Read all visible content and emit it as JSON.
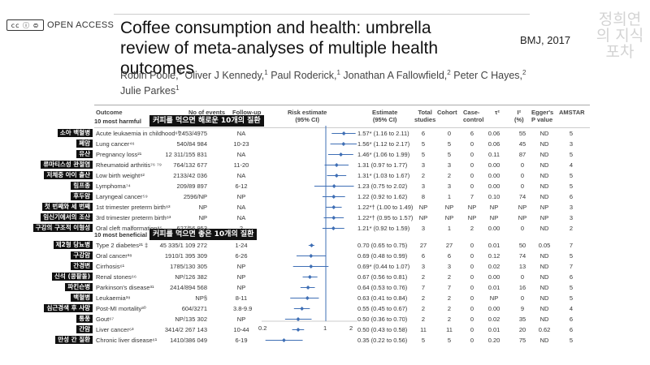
{
  "header": {
    "license_badge": "cc ⓘ ⊜",
    "open_access": "OPEN ACCESS",
    "title": "Coffee consumption and health: umbrella review of meta-analyses of multiple health outcomes",
    "journal": "BMJ, 2017",
    "watermark": "정희연의 지식포차"
  },
  "authors": [
    {
      "name": "Robin Poole,",
      "sup": "1"
    },
    {
      "name": "Oliver J Kennedy,",
      "sup": "1"
    },
    {
      "name": "Paul Roderick,",
      "sup": "1"
    },
    {
      "name": "Jonathan A Fallowfield,",
      "sup": "2"
    },
    {
      "name": "Peter C Hayes,",
      "sup": "2"
    },
    {
      "name": "Julie Parkes",
      "sup": "1"
    }
  ],
  "columns": {
    "outcome": "Outcome",
    "events": "No of events",
    "followup": "Follow-up",
    "risk": "Risk estimate\n(95% CI)",
    "estimate": "Estimate\n(95% CI)",
    "studies": "Total\nstudies",
    "cohort": "Cohort",
    "case_control": "Case-\ncontrol",
    "tau": "τ²",
    "i2": "I²\n(%)",
    "egger": "Egger's\nP value",
    "amstar": "AMSTAR"
  },
  "sections": [
    {
      "title": "10 most harmful",
      "label_kr": "커피를 먹으면 해로운 10개의 질환",
      "rows": [
        {
          "kr": "소아 백혈병",
          "outcome": "Acute leukaemia in childhood⁶⁰",
          "events": "2453/4975",
          "followup": "NA",
          "estimate": "1.57* (1.16 to 2.11)",
          "studies": "6",
          "cohort": "0",
          "cc": "6",
          "tau": "0.06",
          "i2": "55",
          "egger": "ND",
          "amstar": "5"
        },
        {
          "kr": "폐암",
          "outcome": "Lung cancer⁴⁶",
          "events": "540/84 984",
          "followup": "10-23",
          "estimate": "1.56* (1.12 to 2.17)",
          "studies": "5",
          "cohort": "5",
          "cc": "0",
          "tau": "0.06",
          "i2": "45",
          "egger": "ND",
          "amstar": "3"
        },
        {
          "kr": "유산",
          "outcome": "Pregnancy loss²¹",
          "events": "12 311/155 831",
          "followup": "NA",
          "estimate": "1.46* (1.06 to 1.99)",
          "studies": "5",
          "cohort": "5",
          "cc": "0",
          "tau": "0.11",
          "i2": "87",
          "egger": "ND",
          "amstar": "5"
        },
        {
          "kr": "류마티스성 관절염",
          "outcome": "Rheumatoid arthritis⁷⁶ ⁷⁹",
          "events": "764/132 677",
          "followup": "11-20",
          "estimate": "1.31 (0.97 to 1.77)",
          "studies": "3",
          "cohort": "3",
          "cc": "0",
          "tau": "0.00",
          "i2": "0",
          "egger": "ND",
          "amstar": "4"
        },
        {
          "kr": "저체중 아이 출산",
          "outcome": "Low birth weight⁸²",
          "events": "2133/42 036",
          "followup": "NA",
          "estimate": "1.31* (1.03 to 1.67)",
          "studies": "2",
          "cohort": "2",
          "cc": "0",
          "tau": "0.00",
          "i2": "0",
          "egger": "ND",
          "amstar": "5"
        },
        {
          "kr": "림프종",
          "outcome": "Lymphoma⁷⁴",
          "events": "209/89 897",
          "followup": "6-12",
          "estimate": "1.23 (0.75 to 2.02)",
          "studies": "3",
          "cohort": "3",
          "cc": "0",
          "tau": "0.00",
          "i2": "0",
          "egger": "ND",
          "amstar": "5"
        },
        {
          "kr": "후두암",
          "outcome": "Laryngeal cancer⁵⁹",
          "events": "2596/NP",
          "followup": "NP",
          "estimate": "1.22 (0.92 to 1.62)",
          "studies": "8",
          "cohort": "1",
          "cc": "7",
          "tau": "0.10",
          "i2": "74",
          "egger": "ND",
          "amstar": "6"
        },
        {
          "kr": "첫 번째와 세 번째",
          "outcome": "1st trimester preterm birth⁸³",
          "events": "NP",
          "followup": "NA",
          "estimate": "1.22*† (1.00 to 1.49)",
          "studies": "NP",
          "cohort": "NP",
          "cc": "NP",
          "tau": "NP",
          "i2": "NP",
          "egger": "NP",
          "amstar": "3"
        },
        {
          "kr": "임신기에서의 조산",
          "outcome": "3rd trimester preterm birth⁸³",
          "events": "NP",
          "followup": "NA",
          "estimate": "1.22*† (0.95 to 1.57)",
          "studies": "NP",
          "cohort": "NP",
          "cc": "NP",
          "tau": "NP",
          "i2": "NP",
          "egger": "NP",
          "amstar": "3"
        },
        {
          "kr": "구강의 구조적 이형성",
          "outcome": "Oral cleft malformation⁸⁵",
          "events": "627/56 953",
          "followup": "2",
          "estimate": "1.21* (0.92 to 1.59)",
          "studies": "3",
          "cohort": "1",
          "cc": "2",
          "tau": "0.00",
          "i2": "0",
          "egger": "ND",
          "amstar": "2"
        }
      ]
    },
    {
      "title": "10 most beneficial",
      "label_kr": "커피를 먹으면 좋은 10개의 질환",
      "rows": [
        {
          "kr": "제2형 당뇨병",
          "outcome": "Type 2 diabetes²¹ ‡",
          "events": "45 335/1 109 272",
          "followup": "1-24",
          "estimate": "0.70 (0.65 to 0.75)",
          "studies": "27",
          "cohort": "27",
          "cc": "0",
          "tau": "0.01",
          "i2": "50",
          "egger": "0.05",
          "amstar": "7"
        },
        {
          "kr": "구강암",
          "outcome": "Oral cancer³⁸",
          "events": "1910/1 395 309",
          "followup": "6-26",
          "estimate": "0.69 (0.48 to 0.99)",
          "studies": "6",
          "cohort": "6",
          "cc": "0",
          "tau": "0.12",
          "i2": "74",
          "egger": "ND",
          "amstar": "5"
        },
        {
          "kr": "간경변",
          "outcome": "Cirrhosis⁶¹",
          "events": "1785/130 305",
          "followup": "NP",
          "estimate": "0.69* (0.44 to 1.07)",
          "studies": "3",
          "cohort": "3",
          "cc": "0",
          "tau": "0.02",
          "i2": "13",
          "egger": "ND",
          "amstar": "7"
        },
        {
          "kr": "신석 (콩팥돌)",
          "outcome": "Renal stones⁶⁶",
          "events": "NP/126 382",
          "followup": "NP",
          "estimate": "0.67 (0.56 to 0.81)",
          "studies": "2",
          "cohort": "2",
          "cc": "0",
          "tau": "0.00",
          "i2": "0",
          "egger": "ND",
          "amstar": "6"
        },
        {
          "kr": "파킨슨병",
          "outcome": "Parkinson's disease³¹",
          "events": "2414/894 568",
          "followup": "NP",
          "estimate": "0.64 (0.53 to 0.76)",
          "studies": "7",
          "cohort": "7",
          "cc": "0",
          "tau": "0.01",
          "i2": "16",
          "egger": "ND",
          "amstar": "5"
        },
        {
          "kr": "백혈병",
          "outcome": "Leukaemia³⁸",
          "events": "NP§",
          "followup": "8-11",
          "estimate": "0.63 (0.41 to 0.84)",
          "studies": "2",
          "cohort": "2",
          "cc": "0",
          "tau": "NP",
          "i2": "0",
          "egger": "ND",
          "amstar": "5"
        },
        {
          "kr": "심근경색 후 사망",
          "outcome": "Post-MI mortality³⁰",
          "events": "604/3271",
          "followup": "3.8-9.9",
          "estimate": "0.55 (0.45 to 0.67)",
          "studies": "2",
          "cohort": "2",
          "cc": "0",
          "tau": "0.00",
          "i2": "9",
          "egger": "ND",
          "amstar": "4"
        },
        {
          "kr": "통풍",
          "outcome": "Gout⁶⁷",
          "events": "NP/135 302",
          "followup": "NP",
          "estimate": "0.50 (0.36 to 0.70)",
          "studies": "2",
          "cohort": "2",
          "cc": "0",
          "tau": "0.02",
          "i2": "35",
          "egger": "ND",
          "amstar": "6"
        },
        {
          "kr": "간암",
          "outcome": "Liver cancer⁶³",
          "events": "3414/2 267 143",
          "followup": "10-44",
          "estimate": "0.50 (0.43 to 0.58)",
          "studies": "11",
          "cohort": "11",
          "cc": "0",
          "tau": "0.01",
          "i2": "20",
          "egger": "0.62",
          "amstar": "6"
        },
        {
          "kr": "만성 간 질환",
          "outcome": "Chronic liver disease⁶¹",
          "events": "1410/386 049",
          "followup": "6-19",
          "estimate": "0.35 (0.22 to 0.56)",
          "studies": "5",
          "cohort": "5",
          "cc": "0",
          "tau": "0.20",
          "i2": "75",
          "egger": "ND",
          "amstar": "5"
        }
      ]
    }
  ],
  "forest": {
    "ticks": [
      "0.2",
      "1",
      "2"
    ],
    "values": [
      [
        1.57,
        1.16,
        2.11
      ],
      [
        1.56,
        1.12,
        2.17
      ],
      [
        1.46,
        1.06,
        1.99
      ],
      [
        1.31,
        0.97,
        1.77
      ],
      [
        1.31,
        1.03,
        1.67
      ],
      [
        1.23,
        0.75,
        2.02
      ],
      [
        1.22,
        0.92,
        1.62
      ],
      [
        1.22,
        1.0,
        1.49
      ],
      [
        1.22,
        0.95,
        1.57
      ],
      [
        1.21,
        0.92,
        1.59
      ],
      [
        0.7,
        0.65,
        0.75
      ],
      [
        0.69,
        0.48,
        0.99
      ],
      [
        0.69,
        0.44,
        1.07
      ],
      [
        0.67,
        0.56,
        0.81
      ],
      [
        0.64,
        0.53,
        0.76
      ],
      [
        0.63,
        0.41,
        0.84
      ],
      [
        0.55,
        0.45,
        0.67
      ],
      [
        0.5,
        0.36,
        0.7
      ],
      [
        0.5,
        0.43,
        0.58
      ],
      [
        0.35,
        0.22,
        0.56
      ]
    ],
    "color": "#3f6fb5"
  }
}
